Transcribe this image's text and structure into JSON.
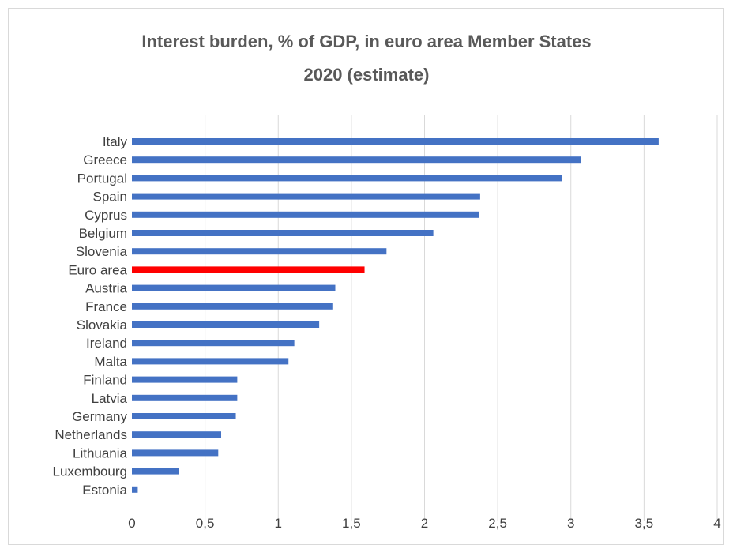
{
  "chart_data": {
    "type": "bar",
    "orientation": "horizontal",
    "title_line1": "Interest burden, % of GDP, in euro area Member States",
    "title_line2": "2020 (estimate)",
    "xlabel": "",
    "ylabel": "",
    "categories": [
      "Italy",
      "Greece",
      "Portugal",
      "Spain",
      "Cyprus",
      "Belgium",
      "Slovenia",
      "Euro area",
      "Austria",
      "France",
      "Slovakia",
      "Ireland",
      "Malta",
      "Finland",
      "Latvia",
      "Germany",
      "Netherlands",
      "Lithuania",
      "Luxembourg",
      "Estonia"
    ],
    "values": [
      3.6,
      3.07,
      2.94,
      2.38,
      2.37,
      2.06,
      1.74,
      1.59,
      1.39,
      1.37,
      1.28,
      1.11,
      1.07,
      0.72,
      0.72,
      0.71,
      0.61,
      0.59,
      0.32,
      0.04
    ],
    "highlight": "Euro area",
    "xlim": [
      0,
      4
    ],
    "xticks": [
      0,
      0.5,
      1,
      1.5,
      2,
      2.5,
      3,
      3.5,
      4
    ],
    "xtick_labels": [
      "0",
      "0,5",
      "1",
      "1,5",
      "2",
      "2,5",
      "3",
      "3,5",
      "4"
    ],
    "grid": "vertical",
    "legend": "none",
    "colors": {
      "bar": "#4472c4",
      "highlight": "#ff0000",
      "grid": "#d9d9d9",
      "text": "#404040"
    }
  }
}
